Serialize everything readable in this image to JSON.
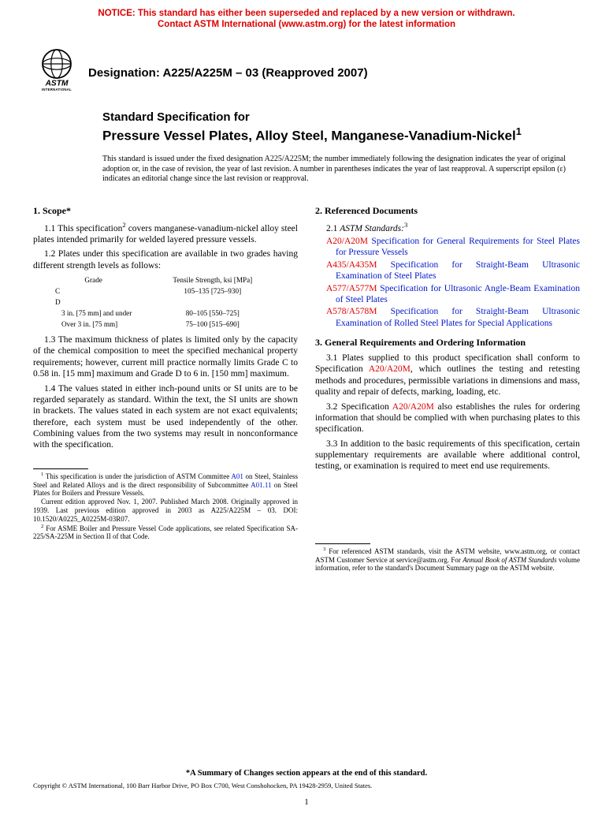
{
  "notice": {
    "line1": "NOTICE: This standard has either been superseded and replaced by a new version or withdrawn.",
    "line2": "Contact ASTM International (www.astm.org) for the latest information",
    "color": "#dd0000"
  },
  "logo": {
    "org": "ASTM",
    "sub": "INTERNATIONAL"
  },
  "designation": "Designation: A225/A225M – 03 (Reapproved 2007)",
  "title": {
    "over": "Standard Specification for",
    "main": "Pressure Vessel Plates, Alloy Steel, Manganese-Vanadium-Nickel",
    "sup": "1"
  },
  "issuance": "This standard is issued under the fixed designation A225/A225M; the number immediately following the designation indicates the year of original adoption or, in the case of revision, the year of last revision. A number in parentheses indicates the year of last reapproval. A superscript epsilon (ε) indicates an editorial change since the last revision or reapproval.",
  "left": {
    "sec1_head": "1. Scope*",
    "p1_1a": "1.1 This specification",
    "p1_1sup": "2",
    "p1_1b": " covers manganese-vanadium-nickel alloy steel plates intended primarily for welded layered pressure vessels.",
    "p1_2": "1.2 Plates under this specification are available in two grades having different strength levels as follows:",
    "grades": {
      "h1": "Grade",
      "h2": "Tensile Strength, ksi [MPa]",
      "r1c1": "C",
      "r1c2": "105–135 [725–930]",
      "r2c1": "D",
      "r2c2": "",
      "r3c1": "3 in. [75 mm] and under",
      "r3c2": "80–105 [550–725]",
      "r4c1": "Over 3 in. [75 mm]",
      "r4c2": "75–100 [515–690]"
    },
    "p1_3": "1.3 The maximum thickness of plates is limited only by the capacity of the chemical composition to meet the specified mechanical property requirements; however, current mill practice normally limits Grade C to 0.58 in. [15 mm] maximum and Grade D to 6 in. [150 mm] maximum.",
    "p1_4": "1.4 The values stated in either inch-pound units or SI units are to be regarded separately as standard. Within the text, the SI units are shown in brackets. The values stated in each system are not exact equivalents; therefore, each system must be used independently of the other. Combining values from the two systems may result in nonconformance with the specification.",
    "fn1a": " This specification is under the jurisdiction of ASTM Committee ",
    "fn1link1": "A01",
    "fn1b": " on Steel, Stainless Steel and Related Alloys and is the direct responsibility of Subcommittee ",
    "fn1link2": "A01.11",
    "fn1c": " on Steel Plates for Boilers and Pressure Vessels.",
    "fn1d": "Current edition approved Nov. 1, 2007. Published March 2008. Originally approved in 1939. Last previous edition approved in 2003 as A225/A225M – 03. DOI: 10.1520/A0225_A0225M-03R07.",
    "fn2": " For ASME Boiler and Pressure Vessel Code applications, see related Specification SA-225/SA-225M in Section II of that Code."
  },
  "right": {
    "sec2_head": "2. Referenced Documents",
    "p2_1": "2.1 ",
    "p2_1i": "ASTM Standards:",
    "p2_1sup": "3",
    "refs": [
      {
        "code": "A20/A20M",
        "txt": " Specification for General Requirements for Steel Plates for Pressure Vessels"
      },
      {
        "code": "A435/A435M",
        "txt": " Specification for Straight-Beam Ultrasonic Examination of Steel Plates"
      },
      {
        "code": "A577/A577M",
        "txt": " Specification for Ultrasonic Angle-Beam Examination of Steel Plates"
      },
      {
        "code": "A578/A578M",
        "txt": " Specification for Straight-Beam Ultrasonic Examination of Rolled Steel Plates for Special Applications"
      }
    ],
    "sec3_head": "3. General Requirements and Ordering Information",
    "p3_1a": "3.1 Plates supplied to this product specification shall conform to Specification ",
    "p3_1link": "A20/A20M",
    "p3_1b": ", which outlines the testing and retesting methods and procedures, permissible variations in dimensions and mass, quality and repair of defects, marking, loading, etc.",
    "p3_2a": "3.2 Specification ",
    "p3_2link": "A20/A20M",
    "p3_2b": " also establishes the rules for ordering information that should be complied with when purchasing plates to this specification.",
    "p3_3": "3.3 In addition to the basic requirements of this specification, certain supplementary requirements are available where additional control, testing, or examination is required to meet end use requirements.",
    "fn3a": " For referenced ASTM standards, visit the ASTM website, www.astm.org, or contact ASTM Customer Service at service@astm.org. For ",
    "fn3i": "Annual Book of ASTM Standards",
    "fn3b": " volume information, refer to the standard's Document Summary page on the ASTM website."
  },
  "bottom": {
    "summary": "*A Summary of Changes section appears at the end of this standard.",
    "copyright": "Copyright © ASTM International, 100 Barr Harbor Drive, PO Box C700, West Conshohocken, PA 19428-2959, United States.",
    "page": "1"
  },
  "colors": {
    "link": "#0018c8",
    "red": "#dd0000"
  }
}
